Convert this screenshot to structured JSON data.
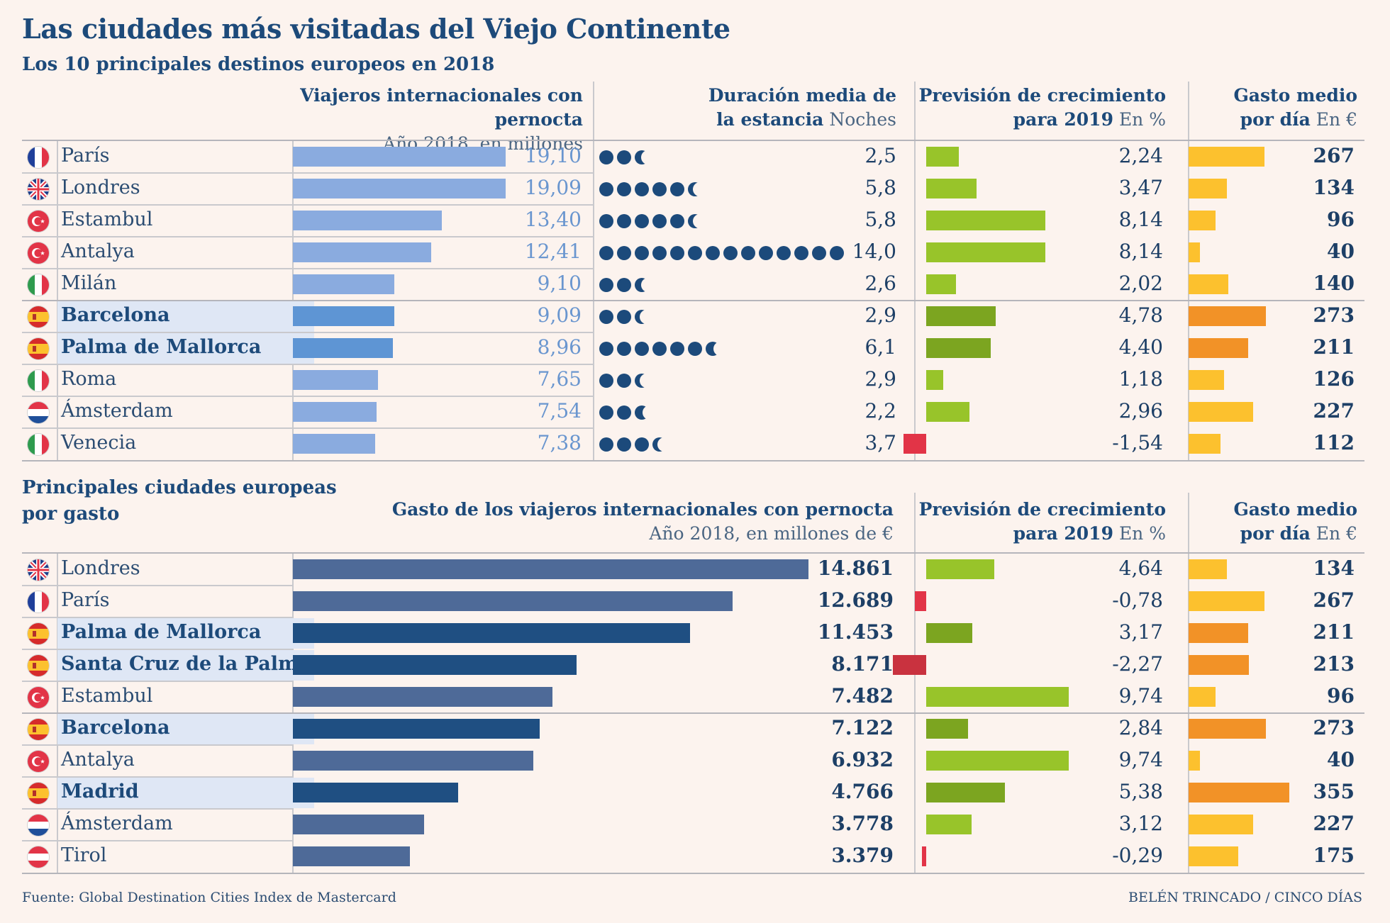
{
  "title": "Las ciudades más visitadas del Viejo Continente",
  "subtitle": "Los 10 principales destinos europeos en 2018",
  "section1": {
    "col1_title": "Viajeros internacionales con pernocta",
    "col1_sub": "Año 2018, en millones",
    "col2_title_a": "Duración media de",
    "col2_title_b": "la estancia",
    "col2_unit": "Noches",
    "col3_title_a": "Previsión de crecimiento",
    "col3_title_b": "para 2019",
    "col3_unit": "En %",
    "col4_title_a": "Gasto medio",
    "col4_title_b": "por día",
    "col4_unit": "En €"
  },
  "section2": {
    "heading_a": "Principales ciudades europeas",
    "heading_b": "por gasto",
    "col1_title": "Gasto de los viajeros internacionales con pernocta",
    "col1_sub": "Año 2018, en millones de €",
    "col3_title_a": "Previsión de crecimiento",
    "col3_title_b": "para 2019",
    "col3_unit": "En %",
    "col4_title_a": "Gasto medio",
    "col4_title_b": "por día",
    "col4_unit": "En €"
  },
  "colors": {
    "bar_light": "#8aabdf",
    "bar_spain": "#5e95d4",
    "num_light": "#6a96cf",
    "bar_dark": "#4e6a98",
    "bar_dark_spain": "#1f4f82",
    "green": "#98c42a",
    "green_spain": "#7ca520",
    "red": "#e23447",
    "red_spain": "#c9323f",
    "yellow": "#fcc12e",
    "orange": "#f29227"
  },
  "chart_data": [
    {
      "type": "bar",
      "title": "Los 10 principales destinos europeos en 2018",
      "columns": [
        "Viajeros internacionales con pernocta (millones)",
        "Duración media de la estancia (noches)",
        "Previsión de crecimiento para 2019 (%)",
        "Gasto medio por día (€)"
      ],
      "rows": [
        {
          "flag": "fr",
          "city": "París",
          "spain": false,
          "travelers": "19,10",
          "travelers_v": 19.1,
          "nights": "2,5",
          "nights_v": 2.5,
          "growth": "2,24",
          "growth_v": 2.24,
          "spend": "267",
          "spend_v": 267
        },
        {
          "flag": "gb",
          "city": "Londres",
          "spain": false,
          "travelers": "19,09",
          "travelers_v": 19.09,
          "nights": "5,8",
          "nights_v": 5.8,
          "growth": "3,47",
          "growth_v": 3.47,
          "spend": "134",
          "spend_v": 134
        },
        {
          "flag": "tr",
          "city": "Estambul",
          "spain": false,
          "travelers": "13,40",
          "travelers_v": 13.4,
          "nights": "5,8",
          "nights_v": 5.8,
          "growth": "8,14",
          "growth_v": 8.14,
          "spend": "96",
          "spend_v": 96
        },
        {
          "flag": "tr",
          "city": "Antalya",
          "spain": false,
          "travelers": "12,41",
          "travelers_v": 12.41,
          "nights": "14,0",
          "nights_v": 14.0,
          "growth": "8,14",
          "growth_v": 8.14,
          "spend": "40",
          "spend_v": 40
        },
        {
          "flag": "it",
          "city": "Milán",
          "spain": false,
          "travelers": "9,10",
          "travelers_v": 9.1,
          "nights": "2,6",
          "nights_v": 2.6,
          "growth": "2,02",
          "growth_v": 2.02,
          "spend": "140",
          "spend_v": 140
        },
        {
          "flag": "es",
          "city": "Barcelona",
          "spain": true,
          "travelers": "9,09",
          "travelers_v": 9.09,
          "nights": "2,9",
          "nights_v": 2.9,
          "growth": "4,78",
          "growth_v": 4.78,
          "spend": "273",
          "spend_v": 273
        },
        {
          "flag": "es",
          "city": "Palma de Mallorca",
          "spain": true,
          "travelers": "8,96",
          "travelers_v": 8.96,
          "nights": "6,1",
          "nights_v": 6.1,
          "growth": "4,40",
          "growth_v": 4.4,
          "spend": "211",
          "spend_v": 211
        },
        {
          "flag": "it",
          "city": "Roma",
          "spain": false,
          "travelers": "7,65",
          "travelers_v": 7.65,
          "nights": "2,9",
          "nights_v": 2.9,
          "growth": "1,18",
          "growth_v": 1.18,
          "spend": "126",
          "spend_v": 126
        },
        {
          "flag": "nl",
          "city": "Ámsterdam",
          "spain": false,
          "travelers": "7,54",
          "travelers_v": 7.54,
          "nights": "2,2",
          "nights_v": 2.2,
          "growth": "2,96",
          "growth_v": 2.96,
          "spend": "227",
          "spend_v": 227
        },
        {
          "flag": "it",
          "city": "Venecia",
          "spain": false,
          "travelers": "7,38",
          "travelers_v": 7.38,
          "nights": "3,7",
          "nights_v": 3.7,
          "growth": "-1,54",
          "growth_v": -1.54,
          "spend": "112",
          "spend_v": 112
        }
      ]
    },
    {
      "type": "bar",
      "title": "Principales ciudades europeas por gasto",
      "columns": [
        "Gasto de los viajeros internacionales con pernocta (millones de €)",
        "Previsión de crecimiento para 2019 (%)",
        "Gasto medio por día (€)"
      ],
      "rows": [
        {
          "flag": "gb",
          "city": "Londres",
          "spain": false,
          "total": "14.861",
          "total_v": 14861,
          "growth": "4,64",
          "growth_v": 4.64,
          "spend": "134",
          "spend_v": 134
        },
        {
          "flag": "fr",
          "city": "París",
          "spain": false,
          "total": "12.689",
          "total_v": 12689,
          "growth": "-0,78",
          "growth_v": -0.78,
          "spend": "267",
          "spend_v": 267
        },
        {
          "flag": "es",
          "city": "Palma de Mallorca",
          "spain": true,
          "total": "11.453",
          "total_v": 11453,
          "growth": "3,17",
          "growth_v": 3.17,
          "spend": "211",
          "spend_v": 211
        },
        {
          "flag": "es",
          "city": "Santa Cruz de la Palma",
          "spain": true,
          "total": "8.171",
          "total_v": 8171,
          "growth": "-2,27",
          "growth_v": -2.27,
          "spend": "213",
          "spend_v": 213
        },
        {
          "flag": "tr",
          "city": "Estambul",
          "spain": false,
          "total": "7.482",
          "total_v": 7482,
          "growth": "9,74",
          "growth_v": 9.74,
          "spend": "96",
          "spend_v": 96
        },
        {
          "flag": "es",
          "city": "Barcelona",
          "spain": true,
          "total": "7.122",
          "total_v": 7122,
          "growth": "2,84",
          "growth_v": 2.84,
          "spend": "273",
          "spend_v": 273
        },
        {
          "flag": "tr",
          "city": "Antalya",
          "spain": false,
          "total": "6.932",
          "total_v": 6932,
          "growth": "9,74",
          "growth_v": 9.74,
          "spend": "40",
          "spend_v": 40
        },
        {
          "flag": "es",
          "city": "Madrid",
          "spain": true,
          "total": "4.766",
          "total_v": 4766,
          "growth": "5,38",
          "growth_v": 5.38,
          "spend": "355",
          "spend_v": 355
        },
        {
          "flag": "nl",
          "city": "Ámsterdam",
          "spain": false,
          "total": "3.778",
          "total_v": 3778,
          "growth": "3,12",
          "growth_v": 3.12,
          "spend": "227",
          "spend_v": 227
        },
        {
          "flag": "at",
          "city": "Tirol",
          "spain": false,
          "total": "3.379",
          "total_v": 3379,
          "growth": "-0,29",
          "growth_v": -0.29,
          "spend": "175",
          "spend_v": 175
        }
      ]
    }
  ],
  "footer": {
    "source": "Fuente: Global Destination Cities Index de Mastercard",
    "credit": "BELÉN TRINCADO / CINCO DÍAS"
  }
}
